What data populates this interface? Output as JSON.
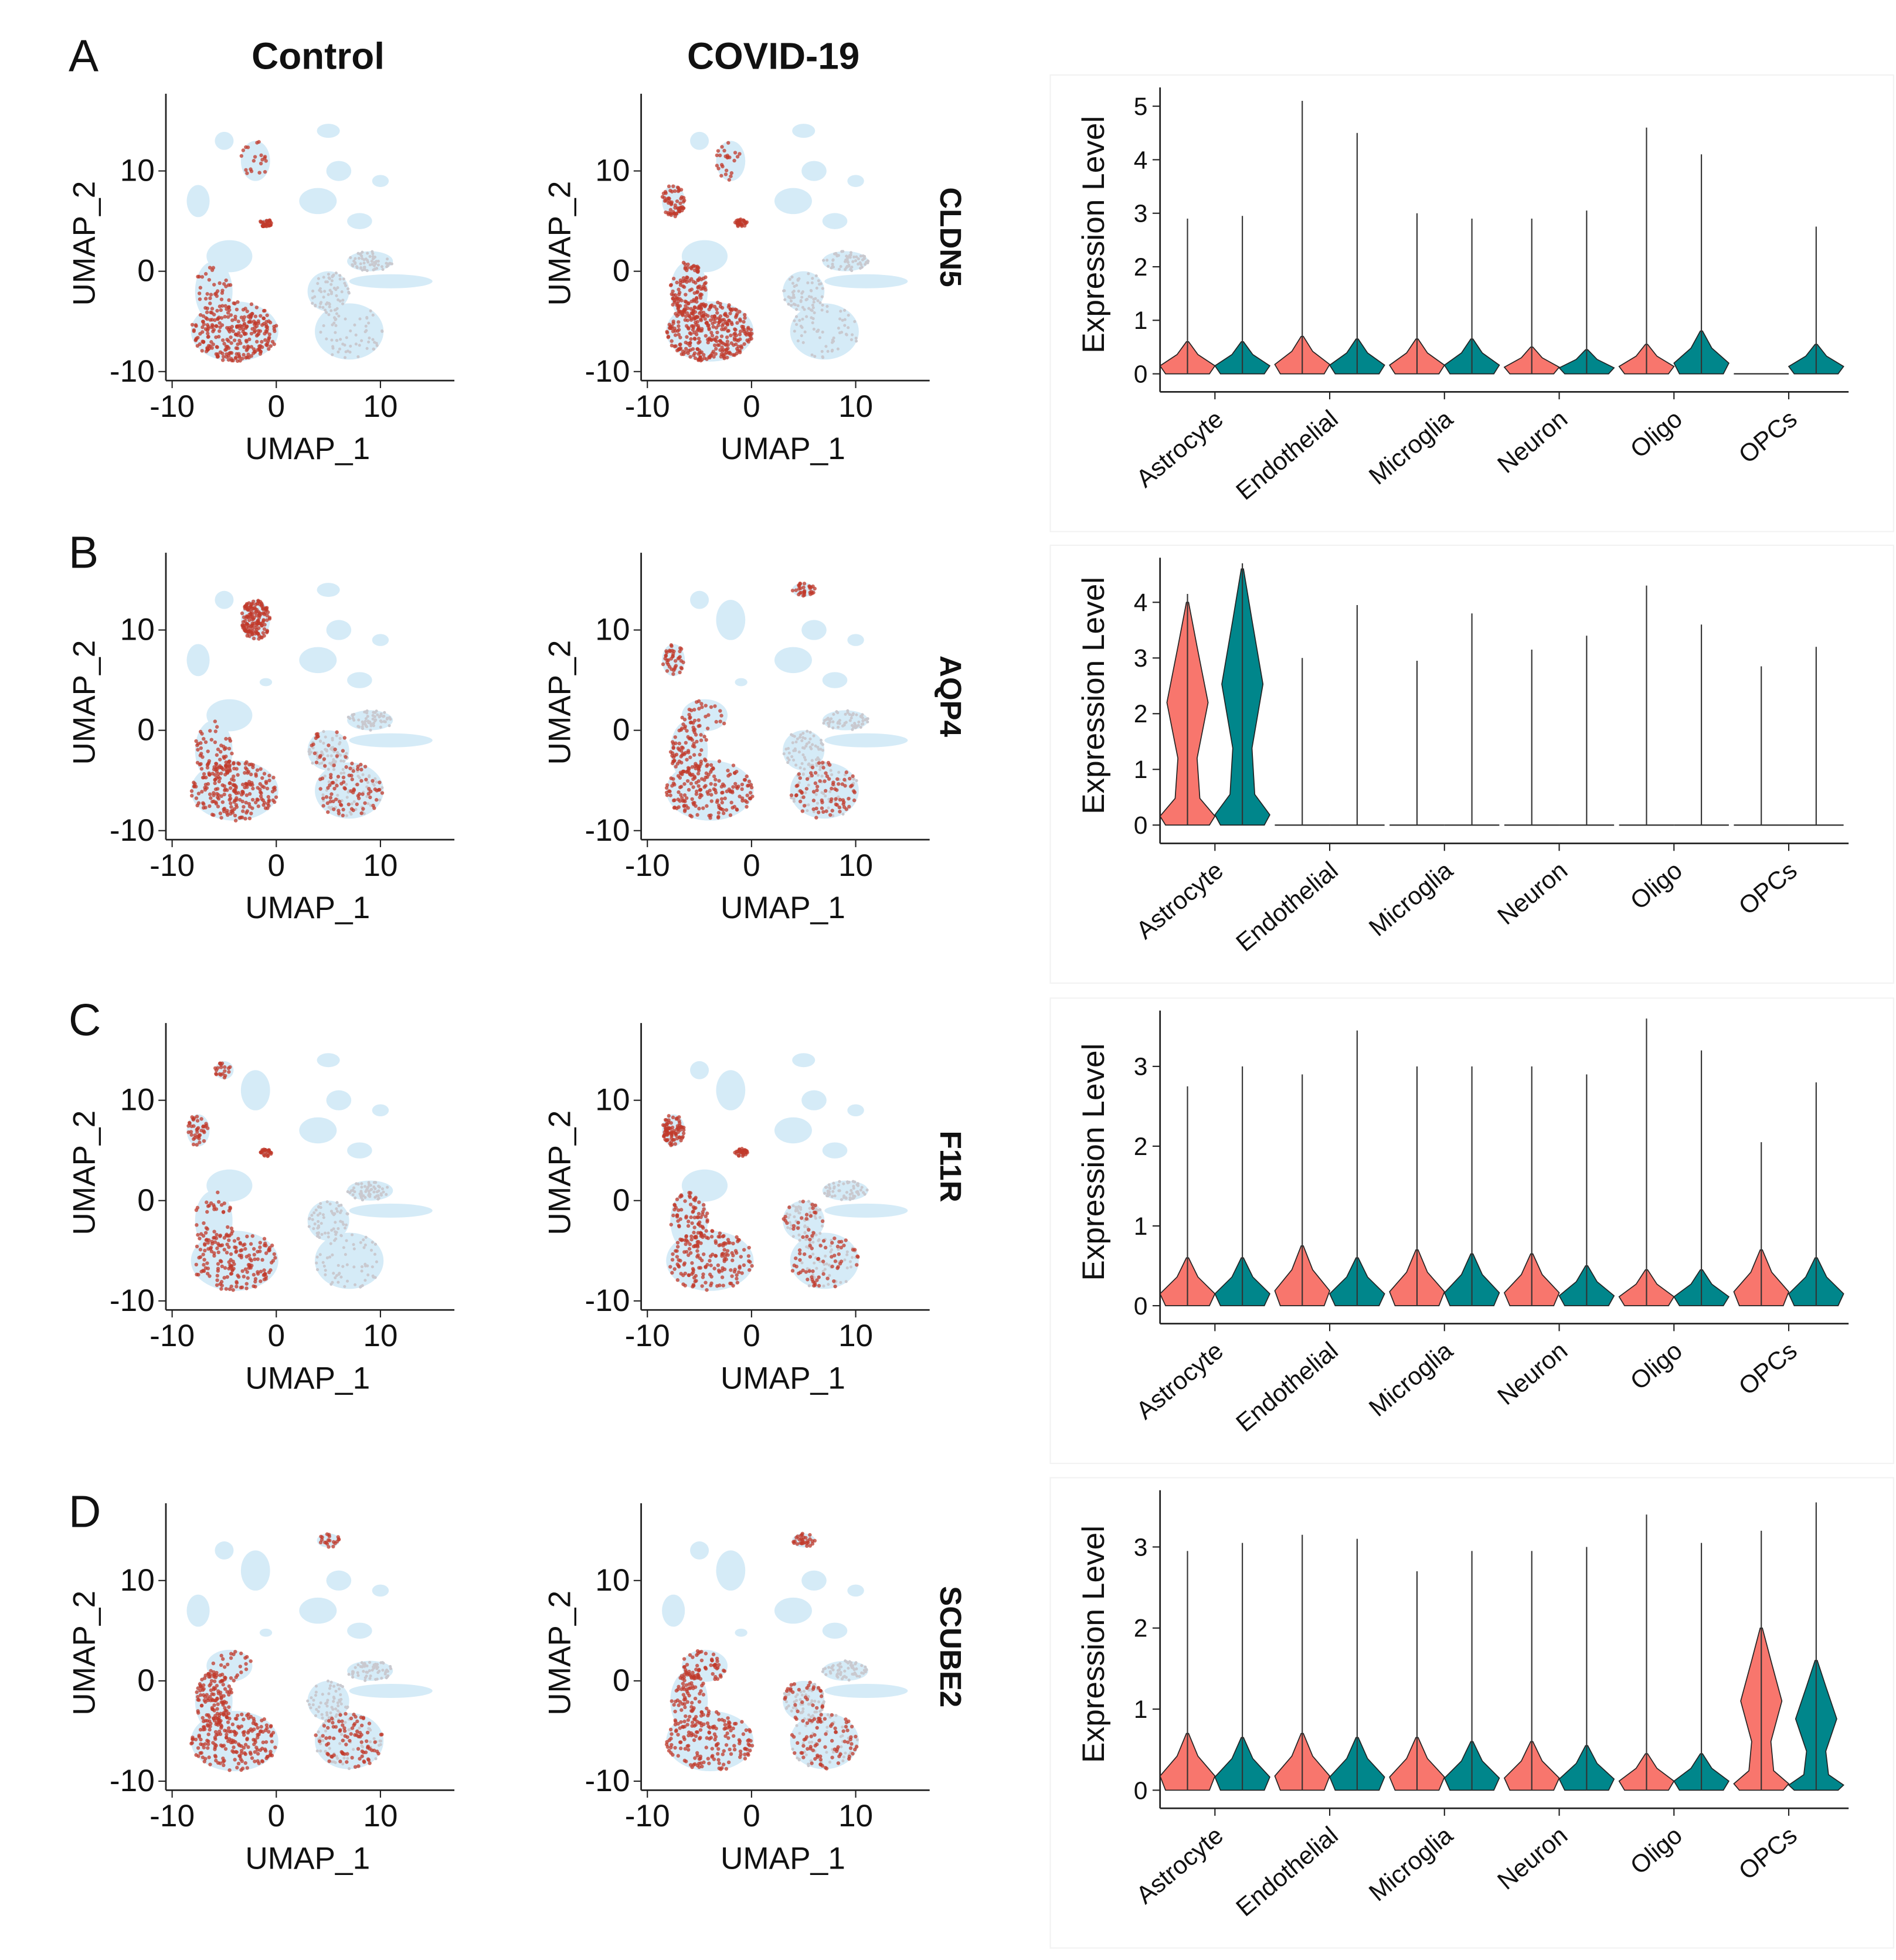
{
  "panel_labels": [
    "A",
    "B",
    "C",
    "D"
  ],
  "column_titles": [
    "Control",
    "COVID-19"
  ],
  "chart_data": [
    {
      "type": "umap",
      "xlabel": "UMAP_1",
      "ylabel": "UMAP_2",
      "xlim": [
        -10.6,
        17.1
      ],
      "ylim": [
        -10.9,
        17.7
      ],
      "xticks": [
        -10,
        0,
        10
      ],
      "yticks": [
        -10,
        0,
        10
      ]
    },
    {
      "type": "umap",
      "xlabel": "UMAP_1",
      "ylabel": "UMAP_2",
      "xlim": [
        -10.6,
        17.1
      ],
      "ylim": [
        -10.9,
        17.7
      ],
      "xticks": [
        -10,
        0,
        10
      ],
      "yticks": [
        -10,
        0,
        10
      ]
    },
    {
      "type": "violin",
      "title": "CLDN5",
      "ylabel": "Expression Level",
      "categories": [
        "Astrocyte",
        "Endothelial",
        "Microglia",
        "Neuron",
        "Oligo",
        "OPCs"
      ],
      "ylim": [
        -0.15,
        5.35
      ],
      "yticks": [
        0,
        1,
        2,
        3,
        4,
        5
      ],
      "series": [
        {
          "color": "#f8766d",
          "values": [
            2.9,
            5.1,
            3.0,
            2.9,
            4.6,
            0
          ],
          "body": [
            0.6,
            0.7,
            0.65,
            0.5,
            0.55,
            0
          ]
        },
        {
          "color": "#00868b",
          "values": [
            2.95,
            4.5,
            2.9,
            3.05,
            4.1,
            2.75
          ],
          "body": [
            0.6,
            0.65,
            0.65,
            0.45,
            0.8,
            0.55
          ]
        }
      ]
    },
    {
      "type": "umap",
      "xlabel": "UMAP_1",
      "ylabel": "UMAP_2",
      "xlim": [
        -10.6,
        17.1
      ],
      "ylim": [
        -10.9,
        17.7
      ],
      "xticks": [
        -10,
        0,
        10
      ],
      "yticks": [
        -10,
        0,
        10
      ]
    },
    {
      "type": "umap",
      "xlabel": "UMAP_1",
      "ylabel": "UMAP_2",
      "xlim": [
        -10.6,
        17.1
      ],
      "ylim": [
        -10.9,
        17.7
      ],
      "xticks": [
        -10,
        0,
        10
      ],
      "yticks": [
        -10,
        0,
        10
      ]
    },
    {
      "type": "violin",
      "title": "AQP4",
      "ylabel": "Expression Level",
      "categories": [
        "Astrocyte",
        "Endothelial",
        "Microglia",
        "Neuron",
        "Oligo",
        "OPCs"
      ],
      "ylim": [
        -0.15,
        4.8
      ],
      "yticks": [
        0,
        1,
        2,
        3,
        4
      ],
      "series": [
        {
          "color": "#f8766d",
          "values": [
            4.15,
            3.0,
            2.95,
            3.15,
            4.3,
            2.85
          ],
          "body": [
            4.0,
            0,
            0,
            0,
            0,
            0
          ]
        },
        {
          "color": "#00868b",
          "values": [
            4.7,
            3.95,
            3.8,
            3.4,
            3.6,
            3.2
          ],
          "body": [
            4.6,
            0,
            0,
            0,
            0,
            0
          ]
        }
      ]
    },
    {
      "type": "umap",
      "xlabel": "UMAP_1",
      "ylabel": "UMAP_2",
      "xlim": [
        -10.6,
        17.1
      ],
      "ylim": [
        -10.9,
        17.7
      ],
      "xticks": [
        -10,
        0,
        10
      ],
      "yticks": [
        -10,
        0,
        10
      ]
    },
    {
      "type": "umap",
      "xlabel": "UMAP_1",
      "ylabel": "UMAP_2",
      "xlim": [
        -10.6,
        17.1
      ],
      "ylim": [
        -10.9,
        17.7
      ],
      "xticks": [
        -10,
        0,
        10
      ],
      "yticks": [
        -10,
        0,
        10
      ]
    },
    {
      "type": "violin",
      "title": "F11R",
      "ylabel": "Expression Level",
      "categories": [
        "Astrocyte",
        "Endothelial",
        "Microglia",
        "Neuron",
        "Oligo",
        "OPCs"
      ],
      "ylim": [
        -0.1,
        3.7
      ],
      "yticks": [
        0,
        1,
        2,
        3
      ],
      "series": [
        {
          "color": "#f8766d",
          "values": [
            2.75,
            2.9,
            3.0,
            3.0,
            3.6,
            2.05
          ],
          "body": [
            0.6,
            0.75,
            0.7,
            0.65,
            0.45,
            0.7
          ]
        },
        {
          "color": "#00868b",
          "values": [
            3.0,
            3.45,
            3.0,
            2.9,
            3.2,
            2.8
          ],
          "body": [
            0.6,
            0.6,
            0.65,
            0.5,
            0.45,
            0.6
          ]
        }
      ]
    },
    {
      "type": "umap",
      "xlabel": "UMAP_1",
      "ylabel": "UMAP_2",
      "xlim": [
        -10.6,
        17.1
      ],
      "ylim": [
        -10.9,
        17.7
      ],
      "xticks": [
        -10,
        0,
        10
      ],
      "yticks": [
        -10,
        0,
        10
      ]
    },
    {
      "type": "umap",
      "xlabel": "UMAP_1",
      "ylabel": "UMAP_2",
      "xlim": [
        -10.6,
        17.1
      ],
      "ylim": [
        -10.9,
        17.7
      ],
      "xticks": [
        -10,
        0,
        10
      ],
      "yticks": [
        -10,
        0,
        10
      ]
    },
    {
      "type": "violin",
      "title": "SCUBE2",
      "ylabel": "Expression Level",
      "categories": [
        "Astrocyte",
        "Endothelial",
        "Microglia",
        "Neuron",
        "Oligo",
        "OPCs"
      ],
      "ylim": [
        -0.1,
        3.7
      ],
      "yticks": [
        0,
        1,
        2,
        3
      ],
      "series": [
        {
          "color": "#f8766d",
          "values": [
            2.95,
            3.15,
            2.7,
            2.95,
            3.4,
            3.2
          ],
          "body": [
            0.7,
            0.7,
            0.65,
            0.6,
            0.45,
            2.0
          ]
        },
        {
          "color": "#00868b",
          "values": [
            3.05,
            3.1,
            2.95,
            3.0,
            3.05,
            3.55
          ],
          "body": [
            0.65,
            0.65,
            0.6,
            0.55,
            0.45,
            1.6
          ]
        }
      ]
    }
  ]
}
